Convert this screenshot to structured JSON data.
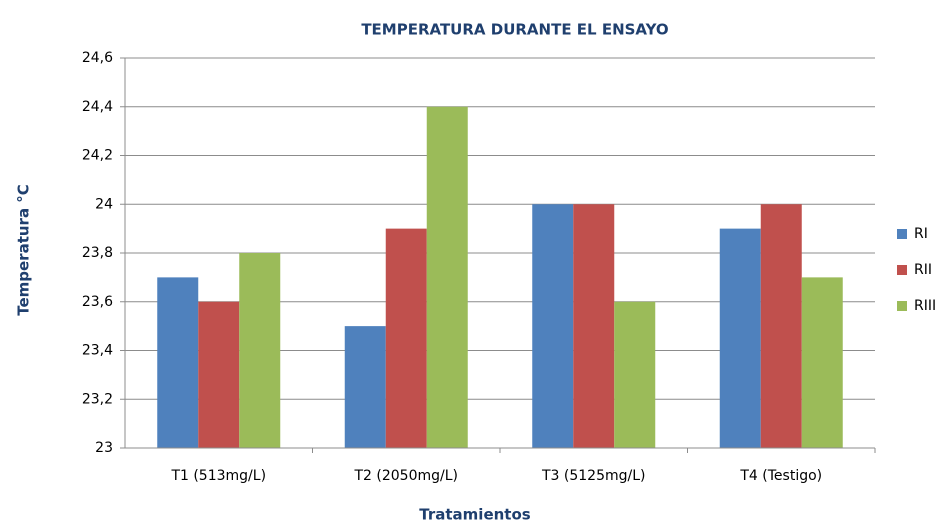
{
  "chart_data": {
    "type": "bar",
    "title": "TEMPERATURA DURANTE EL ENSAYO",
    "x_label": "Tratamientos",
    "y_label": "Temperatura °C",
    "categories": [
      "T1 (513mg/L)",
      "T2 (2050mg/L)",
      "T3 (5125mg/L)",
      "T4 (Testigo)"
    ],
    "series": [
      {
        "name": "RI",
        "color": "#4f81bd",
        "values": [
          23.7,
          23.5,
          24,
          23.9
        ]
      },
      {
        "name": "RII",
        "color": "#c0504d",
        "values": [
          23.6,
          23.9,
          24,
          24
        ]
      },
      {
        "name": "RIII",
        "color": "#9bbb59",
        "values": [
          23.8,
          24.4,
          23.6,
          23.7
        ]
      }
    ],
    "ylim": [
      23,
      24.6
    ],
    "yticks": [
      23,
      {
        "value": 23.2,
        "label": "23,2"
      },
      {
        "value": 23.4,
        "label": "23,4"
      },
      {
        "value": 23.6,
        "label": "23,6"
      },
      {
        "value": 23.8,
        "label": "23,8"
      },
      24,
      {
        "value": 24.2,
        "label": "24,2"
      },
      {
        "value": 24.4,
        "label": "24,4"
      },
      {
        "value": 24.6,
        "label": "24,6"
      }
    ],
    "grid": true,
    "legend": "right"
  }
}
